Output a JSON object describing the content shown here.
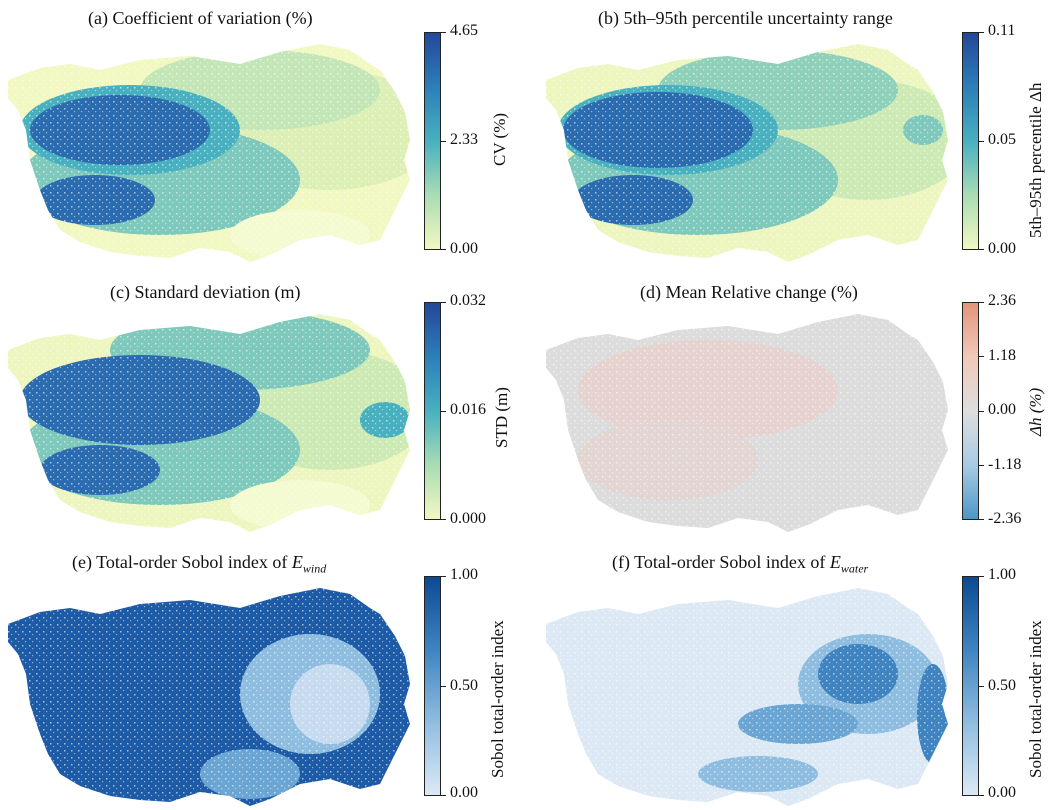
{
  "panels": [
    {
      "id": "a",
      "title": "(a) Coefficient of variation (%)",
      "cbar_label": "CV (%)",
      "ticks": [
        "4.65",
        "2.33",
        "0.00"
      ],
      "colormap": "YlGnBu",
      "colors": {
        "high": "#23479a",
        "mid": "#48b0bf",
        "low": "#f2f8c1"
      }
    },
    {
      "id": "b",
      "title": "(b) 5th–95th percentile uncertainty range",
      "cbar_label": "5th–95th percentile Δh",
      "ticks": [
        "0.11",
        "0.05",
        "0.00"
      ],
      "colormap": "YlGnBu",
      "colors": {
        "high": "#23479a",
        "mid": "#48b0bf",
        "low": "#f2f8c1"
      }
    },
    {
      "id": "c",
      "title": "(c) Standard deviation (m)",
      "cbar_label": "STD (m)",
      "ticks": [
        "0.032",
        "0.016",
        "0.000"
      ],
      "colormap": "YlGnBu",
      "colors": {
        "high": "#23479a",
        "mid": "#48b0bf",
        "low": "#f2f8c1"
      }
    },
    {
      "id": "d",
      "title": "(d) Mean Relative change (%)",
      "cbar_label": "Δh (%)",
      "ticks": [
        "2.36",
        "1.18",
        "0.00",
        "-1.18",
        "-2.36"
      ],
      "colormap": "RdBu_r",
      "colors": {
        "high": "#e3957b",
        "mid": "#dedede",
        "low": "#4d97c7"
      }
    },
    {
      "id": "e",
      "title_prefix": "(e) Total-order Sobol index of ",
      "title_var": "E",
      "title_sub": "wind",
      "cbar_label": "Sobol total-order index",
      "ticks": [
        "1.00",
        "0.50",
        "0.00"
      ],
      "colormap": "Blues",
      "colors": {
        "high": "#1d5ba6",
        "mid": "#6aa5d4",
        "low": "#dce9f5"
      }
    },
    {
      "id": "f",
      "title_prefix": "(f) Total-order Sobol index of ",
      "title_var": "E",
      "title_sub": "water",
      "cbar_label": "Sobol total-order index",
      "ticks": [
        "1.00",
        "0.50",
        "0.00"
      ],
      "colormap": "Blues",
      "colors": {
        "high": "#1d5ba6",
        "mid": "#6aa5d4",
        "low": "#dce9f5"
      }
    }
  ]
}
